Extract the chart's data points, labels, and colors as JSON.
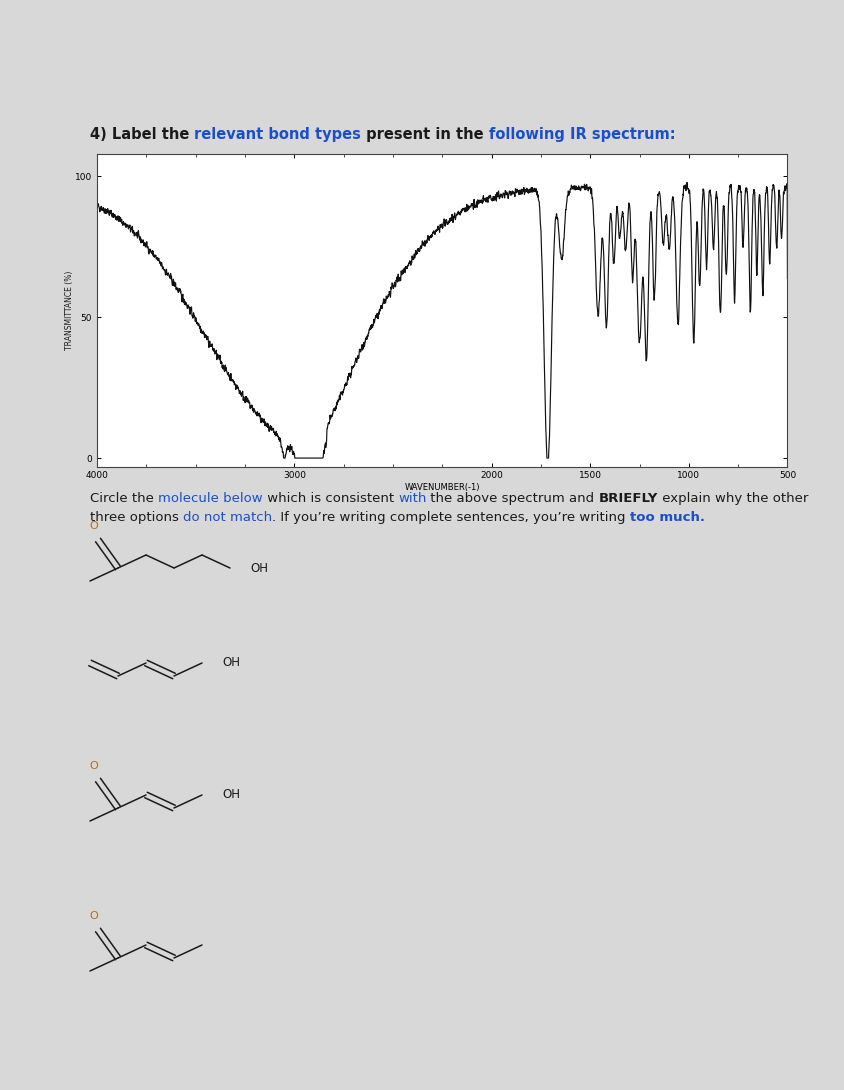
{
  "title_segs": [
    [
      "4) Label the ",
      "#1a1a1a",
      true
    ],
    [
      "relevant bond types",
      "#1a4fcc",
      true
    ],
    [
      " present in the ",
      "#1a1a1a",
      true
    ],
    [
      "following IR spectrum:",
      "#1a4fcc",
      true
    ]
  ],
  "inst1_segs": [
    [
      "Circle the ",
      "#1a1a1a",
      false
    ],
    [
      "molecule below",
      "#1a4fcc",
      false
    ],
    [
      " which is consistent ",
      "#1a1a1a",
      false
    ],
    [
      "with",
      "#1a4fcc",
      false
    ],
    [
      " the above spectrum and ",
      "#1a1a1a",
      false
    ],
    [
      "BRIEFLY",
      "#1a1a1a",
      true
    ],
    [
      " explain why the other",
      "#1a1a1a",
      false
    ]
  ],
  "inst2_segs": [
    [
      "three options ",
      "#1a1a1a",
      false
    ],
    [
      "do not match",
      "#1a4fcc",
      false
    ],
    [
      ". If you’re writing complete sentences, you’re writing ",
      "#1a1a1a",
      false
    ],
    [
      "too much.",
      "#1a4fcc",
      true
    ]
  ],
  "ylabel": "TRANSMITTANCE (%)",
  "xlabel": "WAVENUMBER(-1)",
  "spectrum_color": "#111111",
  "header1_color": "#555555",
  "header2_color": "#777777",
  "bg_white": "#ffffff",
  "outer_bg": "#d8d8d8",
  "title_fontsize": 10.5,
  "inst_fontsize": 9.5
}
